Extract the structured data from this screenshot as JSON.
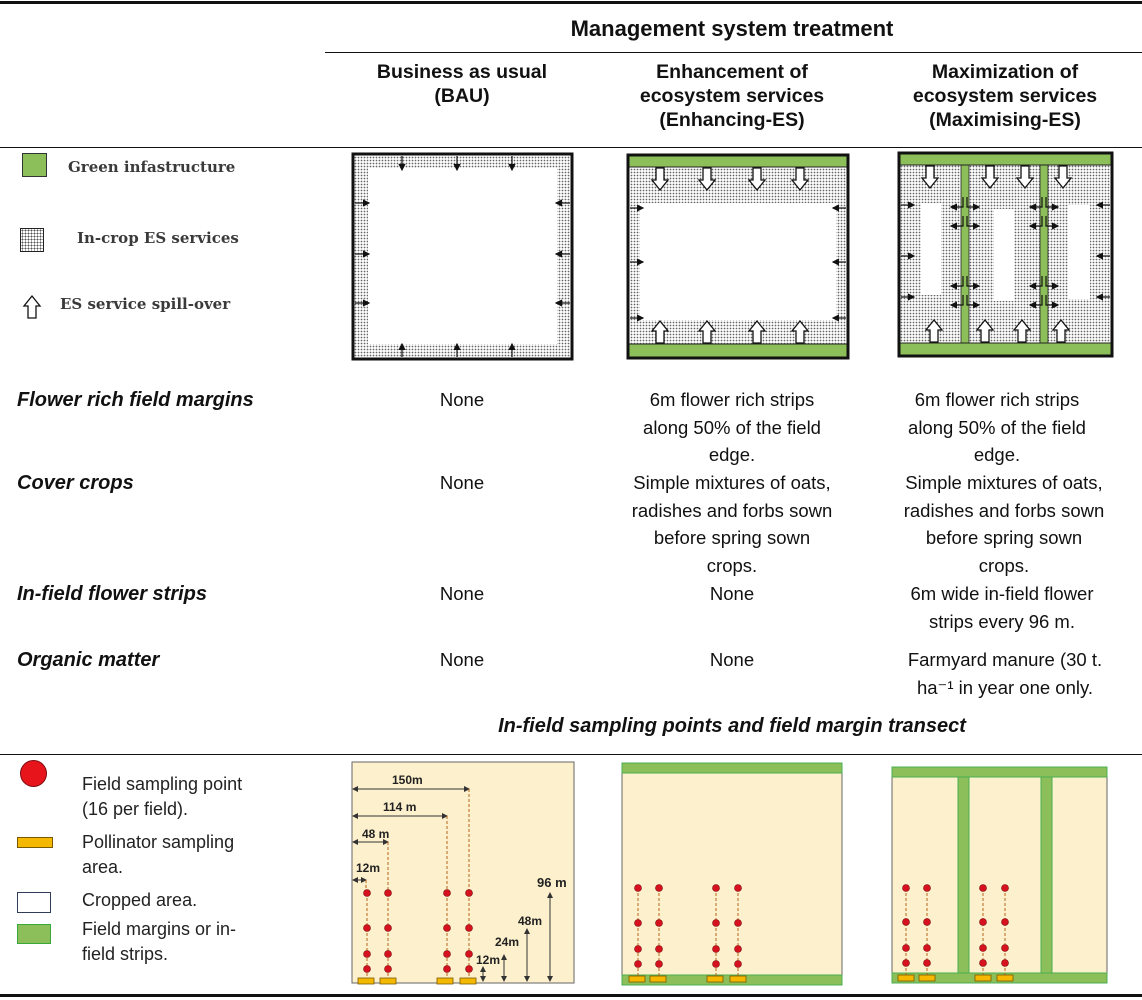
{
  "header": {
    "title": "Management system treatment",
    "columns": [
      {
        "label": "Business as usual\n(BAU)"
      },
      {
        "label": "Enhancement of\necosystem services\n(Enhancing-ES)"
      },
      {
        "label": "Maximization of\necosystem services\n(Maximising-ES)"
      }
    ]
  },
  "legend_top": [
    {
      "label": "Green infastructure",
      "icon": "green-square"
    },
    {
      "label": "In-crop ES services",
      "icon": "stippled-square"
    },
    {
      "label": "ES service spill-over",
      "icon": "outline-up-arrow"
    }
  ],
  "rows": [
    {
      "label": "Flower rich field margins",
      "values": [
        "None",
        "6m flower rich strips\nalong 50% of the field\nedge.",
        "6m flower rich strips\nalong 50% of the field\nedge."
      ]
    },
    {
      "label": "Cover crops",
      "values": [
        "None",
        "Simple mixtures of oats,\nradishes and forbs sown\nbefore spring sown\ncrops.",
        "Simple mixtures of oats,\nradishes and forbs sown\nbefore spring sown\ncrops."
      ]
    },
    {
      "label": "In-field flower strips",
      "values": [
        "None",
        "None",
        "6m wide in-field flower\nstrips every 96 m."
      ]
    },
    {
      "label": "Organic matter",
      "values": [
        "None",
        "None",
        "Farmyard manure (30 t.\nha⁻¹ in year one only."
      ]
    }
  ],
  "sampling": {
    "title": "In-field sampling points and field margin transect",
    "legend": [
      {
        "label": "Field sampling point\n(16 per field).",
        "icon": "red-circle"
      },
      {
        "label": "Pollinator sampling\narea.",
        "icon": "orange-rectangle"
      },
      {
        "label": "Cropped area.",
        "icon": "cream-rectangle"
      },
      {
        "label": "Field margins or in-\nfield strips.",
        "icon": "green-rectangle"
      }
    ],
    "dimensions": {
      "horizontal": [
        "12m",
        "48 m",
        "114 m",
        "150m"
      ],
      "vertical": [
        "12m",
        "24m",
        "48m",
        "96 m"
      ]
    }
  },
  "colors": {
    "green": "#8cbf5a",
    "green_border": "#4caf50",
    "cream": "#fdf0cc",
    "red_point": "#d7121f",
    "orange": "#f5b800"
  }
}
